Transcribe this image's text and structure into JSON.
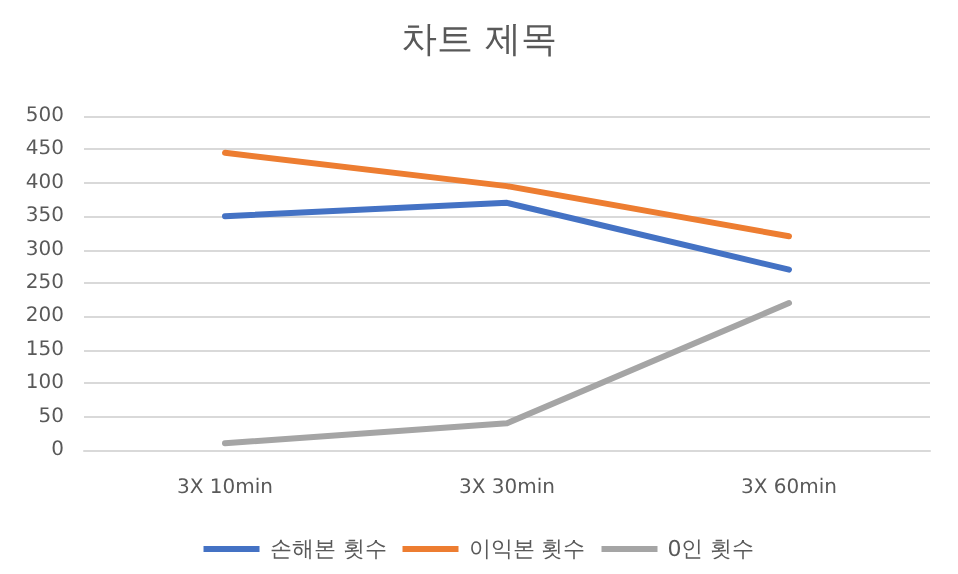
{
  "chart_data": {
    "type": "line",
    "title": "차트 제목",
    "categories": [
      "3X 10min",
      "3X 30min",
      "3X 60min"
    ],
    "series": [
      {
        "name": "손해본 횟수",
        "color": "#4472c4",
        "values": [
          350,
          370,
          270
        ]
      },
      {
        "name": "이익본 횟수",
        "color": "#ed7d31",
        "values": [
          445,
          395,
          320
        ]
      },
      {
        "name": "0인 횟수",
        "color": "#a5a5a5",
        "values": [
          10,
          40,
          220
        ]
      }
    ],
    "ylim": [
      0,
      500
    ],
    "yticks": [
      0,
      50,
      100,
      150,
      200,
      250,
      300,
      350,
      400,
      450,
      500
    ],
    "grid": "y",
    "legend": "bottom",
    "marker": "none",
    "line_style": "solid"
  }
}
